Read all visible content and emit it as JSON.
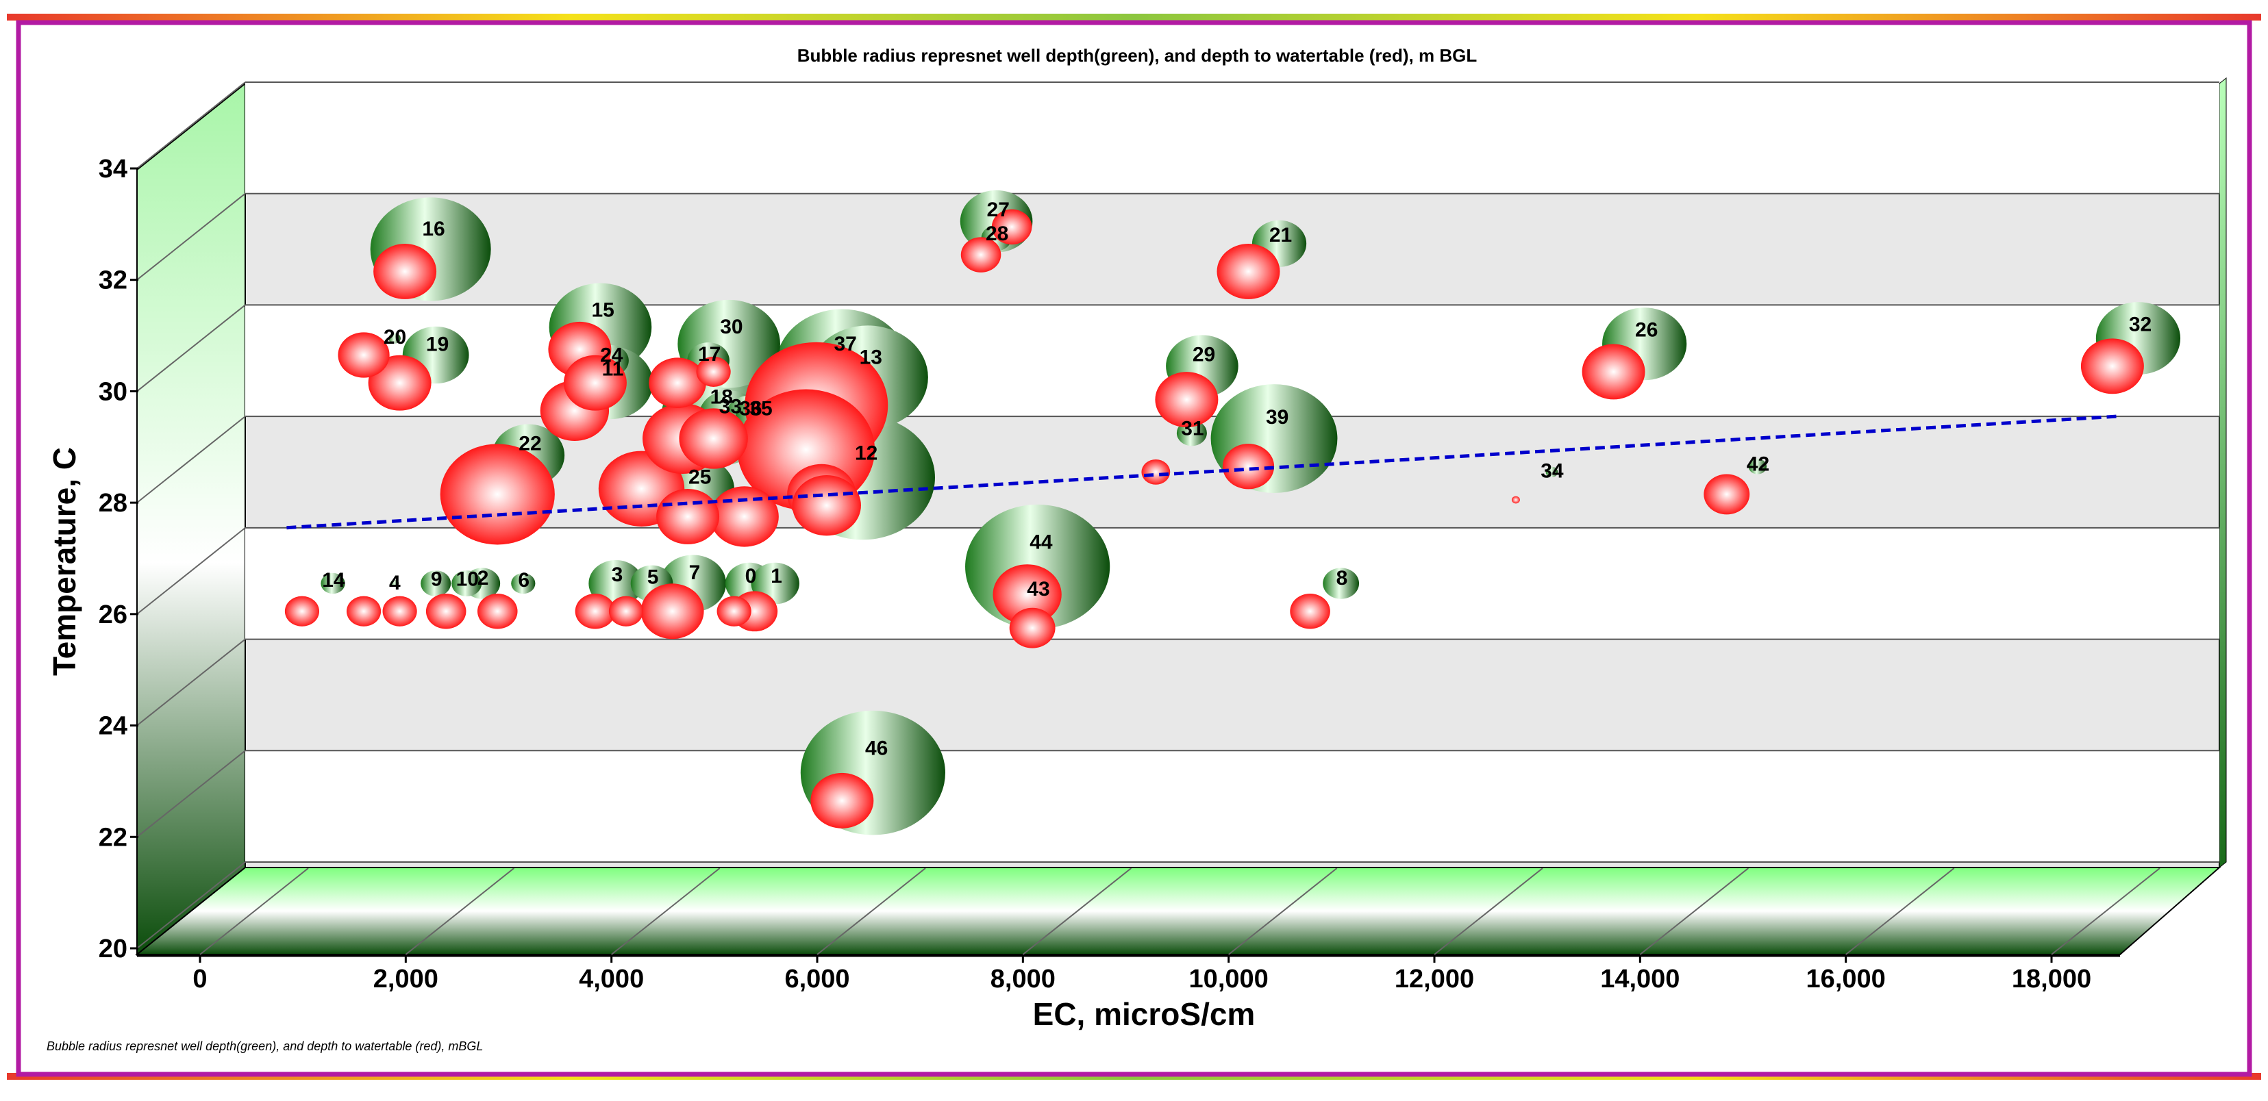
{
  "chart_data": {
    "type": "bubble",
    "title": "Bubble radius represnet well depth(green), and depth to watertable (red), m BGL",
    "footnote": "Bubble radius represnet well depth(green), and depth to watertable (red), mBGL",
    "xlabel": "EC, microS/cm",
    "ylabel": "Temperature, C",
    "xlim": [
      0,
      18000
    ],
    "ylim": [
      20,
      34
    ],
    "x_ticks": [
      "0",
      "2,000",
      "4,000",
      "6,000",
      "8,000",
      "10,000",
      "12,000",
      "14,000",
      "16,000",
      "18,000"
    ],
    "y_ticks": [
      "20",
      "22",
      "24",
      "26",
      "28",
      "30",
      "32",
      "34"
    ],
    "grid": true,
    "colors": {
      "frame_gradient": [
        "#e8392c",
        "#f5e11a",
        "#8cc63f",
        "#7b2ff7",
        "#b5179e"
      ],
      "well_depth": "#1e7a1e",
      "water_table": "#ff2a2a",
      "trend": "#0000cc",
      "wall_green": "#a8f5a8"
    },
    "series": [
      {
        "name": "well depth (green)",
        "points": [
          {
            "label": "14",
            "x": 850,
            "y": 25.9,
            "r": 4
          },
          {
            "label": "4",
            "x": 1450,
            "y": 25.9,
            "r": 1
          },
          {
            "label": "9",
            "x": 1850,
            "y": 25.9,
            "r": 5
          },
          {
            "label": "10",
            "x": 2150,
            "y": 25.9,
            "r": 5
          },
          {
            "label": "2",
            "x": 2300,
            "y": 25.9,
            "r": 6
          },
          {
            "label": "6",
            "x": 2700,
            "y": 25.9,
            "r": 4
          },
          {
            "label": "3",
            "x": 3600,
            "y": 25.9,
            "r": 9
          },
          {
            "label": "5",
            "x": 3950,
            "y": 25.9,
            "r": 7
          },
          {
            "label": "7",
            "x": 4350,
            "y": 25.9,
            "r": 11
          },
          {
            "label": "0",
            "x": 4900,
            "y": 25.9,
            "r": 8
          },
          {
            "label": "1",
            "x": 5150,
            "y": 25.9,
            "r": 8
          },
          {
            "label": "16",
            "x": 1800,
            "y": 31.9,
            "r": 20
          },
          {
            "label": "20",
            "x": 1450,
            "y": 30.3,
            "r": 2
          },
          {
            "label": "19",
            "x": 1850,
            "y": 30.0,
            "r": 11
          },
          {
            "label": "15",
            "x": 3450,
            "y": 30.5,
            "r": 17
          },
          {
            "label": "24",
            "x": 3550,
            "y": 29.9,
            "r": 6
          },
          {
            "label": "11",
            "x": 3550,
            "y": 29.5,
            "r": 14
          },
          {
            "label": "22",
            "x": 2750,
            "y": 28.2,
            "r": 12
          },
          {
            "label": "30",
            "x": 4700,
            "y": 30.2,
            "r": 17
          },
          {
            "label": "17",
            "x": 4500,
            "y": 29.9,
            "r": 7
          },
          {
            "label": "18",
            "x": 4600,
            "y": 28.9,
            "r": 19
          },
          {
            "label": "33",
            "x": 4700,
            "y": 28.9,
            "r": 10
          },
          {
            "label": "36",
            "x": 4900,
            "y": 28.9,
            "r": 8
          },
          {
            "label": "35",
            "x": 5000,
            "y": 28.9,
            "r": 8
          },
          {
            "label": "25",
            "x": 4400,
            "y": 27.6,
            "r": 12
          },
          {
            "label": "37",
            "x": 5800,
            "y": 29.8,
            "r": 22
          },
          {
            "label": "13",
            "x": 6050,
            "y": 29.6,
            "r": 20
          },
          {
            "label": "12",
            "x": 6000,
            "y": 27.8,
            "r": 24
          },
          {
            "label": "27",
            "x": 7300,
            "y": 32.4,
            "r": 12
          },
          {
            "label": "28",
            "x": 7300,
            "y": 32.1,
            "r": 5
          },
          {
            "label": "21",
            "x": 10050,
            "y": 32.0,
            "r": 9
          },
          {
            "label": "29",
            "x": 9300,
            "y": 29.8,
            "r": 12
          },
          {
            "label": "31",
            "x": 9200,
            "y": 28.6,
            "r": 5
          },
          {
            "label": "39",
            "x": 10000,
            "y": 28.5,
            "r": 21
          },
          {
            "label": "44",
            "x": 7700,
            "y": 26.2,
            "r": 24
          },
          {
            "label": "43",
            "x": 7700,
            "y": 25.7,
            "r": 6
          },
          {
            "label": "8",
            "x": 10650,
            "y": 25.9,
            "r": 6
          },
          {
            "label": "34",
            "x": 12700,
            "y": 27.9,
            "r": 2
          },
          {
            "label": "26",
            "x": 13600,
            "y": 30.2,
            "r": 14
          },
          {
            "label": "42",
            "x": 14700,
            "y": 28.0,
            "r": 3
          },
          {
            "label": "32",
            "x": 18400,
            "y": 30.3,
            "r": 14
          },
          {
            "label": "46",
            "x": 6100,
            "y": 22.5,
            "r": 24
          }
        ]
      },
      {
        "name": "depth to water table (red)",
        "points": [
          {
            "x": 550,
            "y": 25.4,
            "r": 6
          },
          {
            "x": 1150,
            "y": 25.4,
            "r": 6
          },
          {
            "x": 1500,
            "y": 25.4,
            "r": 6
          },
          {
            "x": 1950,
            "y": 25.4,
            "r": 7
          },
          {
            "x": 2450,
            "y": 25.4,
            "r": 7
          },
          {
            "x": 3400,
            "y": 25.4,
            "r": 7
          },
          {
            "x": 3700,
            "y": 25.4,
            "r": 6
          },
          {
            "x": 4150,
            "y": 25.4,
            "r": 11
          },
          {
            "x": 4750,
            "y": 25.4,
            "r": 6
          },
          {
            "x": 4950,
            "y": 25.4,
            "r": 8
          },
          {
            "x": 1550,
            "y": 31.5,
            "r": 11
          },
          {
            "x": 1150,
            "y": 30.0,
            "r": 9
          },
          {
            "x": 1500,
            "y": 29.5,
            "r": 11
          },
          {
            "x": 3250,
            "y": 30.1,
            "r": 11
          },
          {
            "x": 3400,
            "y": 29.5,
            "r": 11
          },
          {
            "x": 3200,
            "y": 29.0,
            "r": 12
          },
          {
            "x": 2450,
            "y": 27.5,
            "r": 20
          },
          {
            "x": 3850,
            "y": 27.6,
            "r": 15
          },
          {
            "x": 4200,
            "y": 29.5,
            "r": 10
          },
          {
            "x": 4550,
            "y": 29.7,
            "r": 6
          },
          {
            "x": 4250,
            "y": 28.5,
            "r": 14
          },
          {
            "x": 4550,
            "y": 28.5,
            "r": 12
          },
          {
            "x": 4300,
            "y": 27.1,
            "r": 11
          },
          {
            "x": 4850,
            "y": 27.1,
            "r": 12
          },
          {
            "x": 5550,
            "y": 29.1,
            "r": 25
          },
          {
            "x": 5450,
            "y": 28.3,
            "r": 24
          },
          {
            "x": 5600,
            "y": 27.5,
            "r": 12
          },
          {
            "x": 5650,
            "y": 27.3,
            "r": 12
          },
          {
            "x": 7450,
            "y": 32.3,
            "r": 7
          },
          {
            "x": 7150,
            "y": 31.8,
            "r": 7
          },
          {
            "x": 9750,
            "y": 31.5,
            "r": 11
          },
          {
            "x": 9150,
            "y": 29.2,
            "r": 11
          },
          {
            "x": 9750,
            "y": 28.0,
            "r": 9
          },
          {
            "x": 8850,
            "y": 27.9,
            "r": 5
          },
          {
            "x": 7600,
            "y": 25.7,
            "r": 12
          },
          {
            "x": 7650,
            "y": 25.1,
            "r": 8
          },
          {
            "x": 10350,
            "y": 25.4,
            "r": 7
          },
          {
            "x": 12350,
            "y": 27.4,
            "r": 1
          },
          {
            "x": 13300,
            "y": 29.7,
            "r": 11
          },
          {
            "x": 14400,
            "y": 27.5,
            "r": 8
          },
          {
            "x": 18150,
            "y": 29.8,
            "r": 11
          },
          {
            "x": 5800,
            "y": 22.0,
            "r": 11
          }
        ]
      }
    ],
    "trendline": {
      "style": "dashed",
      "x": [
        400,
        18200
      ],
      "y": [
        26.9,
        28.9
      ]
    }
  }
}
